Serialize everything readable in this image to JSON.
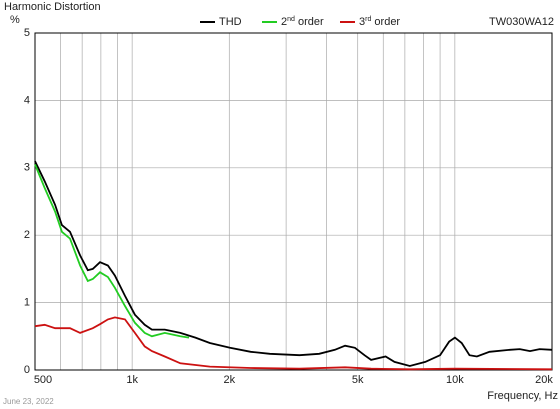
{
  "chart_data": {
    "type": "line",
    "title": "Harmonic Distortion",
    "y_label": "%",
    "x_label": "Frequency, Hz",
    "model": "TW030WA12",
    "date": "June 23, 2022",
    "x_scale": "log",
    "xlim": [
      500,
      20000
    ],
    "ylim": [
      0,
      5
    ],
    "xticks": [
      500,
      {
        "value": 1000,
        "label": "1k"
      },
      {
        "value": 2000,
        "label": "2k"
      },
      {
        "value": 5000,
        "label": "5k"
      },
      {
        "value": 10000,
        "label": "10k"
      },
      {
        "value": 20000,
        "label": "20k"
      }
    ],
    "xgrid": [
      600,
      700,
      800,
      900,
      3000,
      4000,
      6000,
      7000,
      8000,
      9000
    ],
    "yticks": [
      0,
      1,
      2,
      3,
      4,
      5
    ],
    "grid": true,
    "legend": "top",
    "series": [
      {
        "name": "THD",
        "color": "#000000",
        "x": [
          500,
          536,
          577,
          606,
          642,
          690,
          729,
          755,
          795,
          841,
          884,
          950,
          1020,
          1094,
          1151,
          1262,
          1410,
          1570,
          1740,
          2010,
          2330,
          2670,
          3300,
          3800,
          4250,
          4570,
          4900,
          5250,
          5500,
          6100,
          6500,
          7250,
          8100,
          9000,
          9600,
          10000,
          10500,
          11100,
          11700,
          12800,
          14800,
          15900,
          17100,
          18300,
          20000
        ],
        "values": [
          3.1,
          2.8,
          2.45,
          2.15,
          2.05,
          1.7,
          1.48,
          1.5,
          1.6,
          1.55,
          1.4,
          1.1,
          0.82,
          0.67,
          0.6,
          0.6,
          0.55,
          0.48,
          0.4,
          0.33,
          0.27,
          0.24,
          0.22,
          0.24,
          0.3,
          0.36,
          0.33,
          0.22,
          0.15,
          0.2,
          0.12,
          0.06,
          0.12,
          0.22,
          0.42,
          0.48,
          0.4,
          0.22,
          0.2,
          0.27,
          0.3,
          0.31,
          0.28,
          0.31,
          0.3
        ]
      },
      {
        "name": "2nd order",
        "color": "#22cc22",
        "x": [
          500,
          536,
          577,
          606,
          642,
          690,
          729,
          755,
          795,
          841,
          884,
          950,
          1020,
          1094,
          1151,
          1262,
          1410,
          1500
        ],
        "values": [
          3.05,
          2.7,
          2.35,
          2.05,
          1.95,
          1.55,
          1.32,
          1.35,
          1.45,
          1.38,
          1.22,
          0.95,
          0.7,
          0.55,
          0.5,
          0.55,
          0.5,
          0.48
        ]
      },
      {
        "name": "3rd order",
        "color": "#cc1111",
        "x": [
          500,
          536,
          577,
          642,
          690,
          755,
          795,
          841,
          884,
          950,
          1020,
          1094,
          1151,
          1262,
          1410,
          1740,
          2330,
          3300,
          4570,
          5500,
          7250,
          10000,
          20000
        ],
        "values": [
          0.65,
          0.67,
          0.62,
          0.62,
          0.55,
          0.62,
          0.68,
          0.75,
          0.78,
          0.75,
          0.55,
          0.35,
          0.28,
          0.2,
          0.1,
          0.05,
          0.03,
          0.02,
          0.04,
          0.02,
          0.01,
          0.02,
          0.01
        ]
      }
    ]
  }
}
